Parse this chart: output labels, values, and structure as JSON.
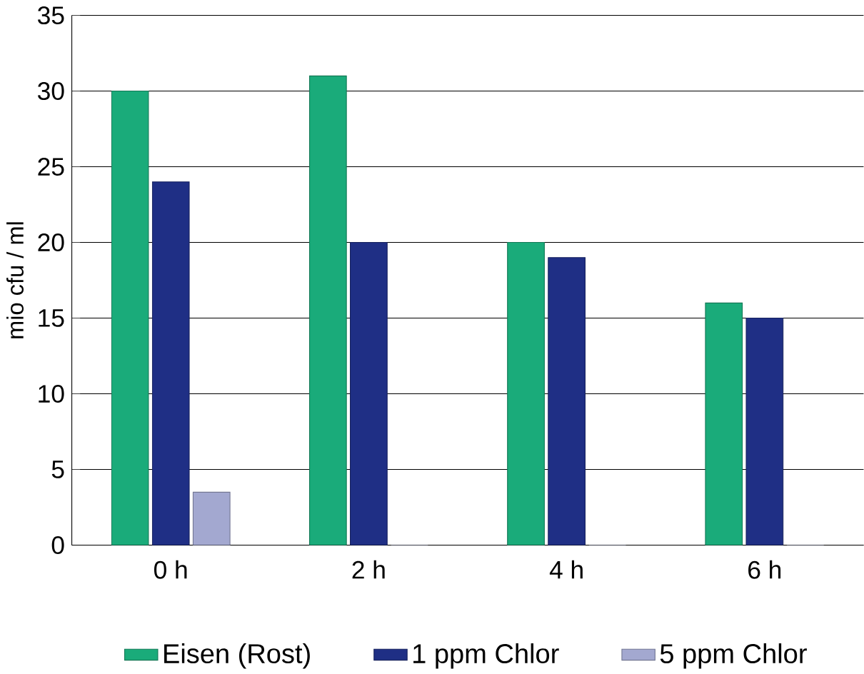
{
  "chart_data": {
    "type": "bar",
    "ylabel": "mio cfu / ml",
    "categories": [
      "0 h",
      "2 h",
      "4 h",
      "6 h"
    ],
    "series": [
      {
        "name": "Eisen (Rost)",
        "color": "#1aab7a",
        "values": [
          30,
          31,
          20,
          16
        ]
      },
      {
        "name": "1 ppm Chlor",
        "color": "#1f2f85",
        "values": [
          24,
          20,
          19,
          15
        ]
      },
      {
        "name": "5 ppm Chlor",
        "color": "#a3a8d0",
        "values": [
          3.5,
          0,
          0,
          0
        ]
      }
    ],
    "ylim": [
      0,
      35
    ],
    "yticks": [
      0,
      5,
      10,
      15,
      20,
      25,
      30,
      35
    ],
    "grid": "y",
    "legend": "bottom"
  }
}
